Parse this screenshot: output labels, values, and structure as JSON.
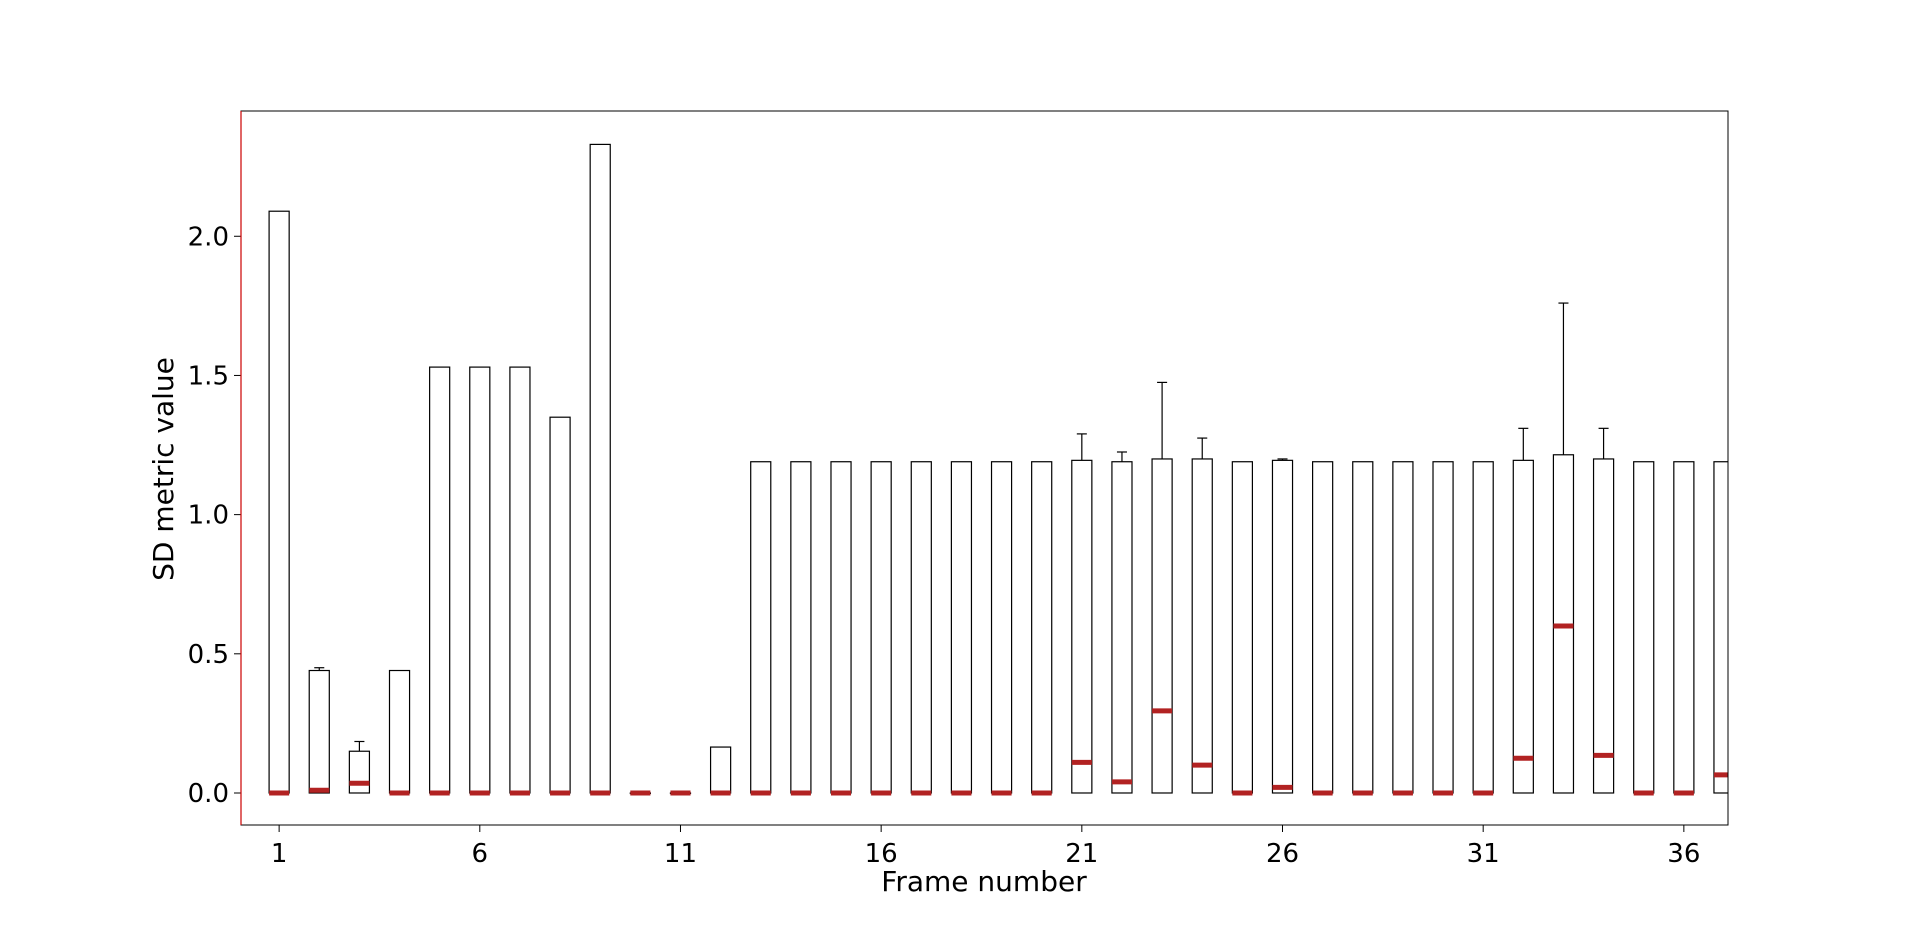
{
  "chart_data": {
    "type": "box",
    "title": "",
    "xlabel": "Frame number",
    "ylabel": "SD metric value",
    "xlim": [
      0.05,
      37.1
    ],
    "ylim": [
      -0.115,
      2.45
    ],
    "x_ticks": [
      1,
      6,
      11,
      16,
      21,
      26,
      31,
      36
    ],
    "y_ticks": [
      "0.0",
      "0.5",
      "1.0",
      "1.5",
      "2.0"
    ],
    "y_tick_values": [
      0.0,
      0.5,
      1.0,
      1.5,
      2.0
    ],
    "grid": false,
    "box_edge_color": "#000000",
    "median_color": "#b22222",
    "frame_color": "#cc0000",
    "boxes": [
      {
        "frame": 1,
        "q1": 0.0,
        "q3": 2.09,
        "median": 0.0,
        "whisker_high": 2.09
      },
      {
        "frame": 2,
        "q1": 0.0,
        "q3": 0.44,
        "median": 0.01,
        "whisker_high": 0.45
      },
      {
        "frame": 3,
        "q1": 0.0,
        "q3": 0.15,
        "median": 0.035,
        "whisker_high": 0.185
      },
      {
        "frame": 4,
        "q1": 0.0,
        "q3": 0.44,
        "median": 0.0,
        "whisker_high": 0.44
      },
      {
        "frame": 5,
        "q1": 0.0,
        "q3": 1.53,
        "median": 0.0,
        "whisker_high": 1.53
      },
      {
        "frame": 6,
        "q1": 0.0,
        "q3": 1.53,
        "median": 0.0,
        "whisker_high": 1.53
      },
      {
        "frame": 7,
        "q1": 0.0,
        "q3": 1.53,
        "median": 0.0,
        "whisker_high": 1.53
      },
      {
        "frame": 8,
        "q1": 0.0,
        "q3": 1.35,
        "median": 0.0,
        "whisker_high": 1.35
      },
      {
        "frame": 9,
        "q1": 0.0,
        "q3": 2.33,
        "median": 0.0,
        "whisker_high": 2.33
      },
      {
        "frame": 10,
        "q1": 0.0,
        "q3": 0.0,
        "median": 0.0,
        "whisker_high": 0.0
      },
      {
        "frame": 11,
        "q1": 0.0,
        "q3": 0.0,
        "median": 0.0,
        "whisker_high": 0.0
      },
      {
        "frame": 12,
        "q1": 0.0,
        "q3": 0.165,
        "median": 0.0,
        "whisker_high": 0.165
      },
      {
        "frame": 13,
        "q1": 0.0,
        "q3": 1.19,
        "median": 0.0,
        "whisker_high": 1.19
      },
      {
        "frame": 14,
        "q1": 0.0,
        "q3": 1.19,
        "median": 0.0,
        "whisker_high": 1.19
      },
      {
        "frame": 15,
        "q1": 0.0,
        "q3": 1.19,
        "median": 0.0,
        "whisker_high": 1.19
      },
      {
        "frame": 16,
        "q1": 0.0,
        "q3": 1.19,
        "median": 0.0,
        "whisker_high": 1.19
      },
      {
        "frame": 17,
        "q1": 0.0,
        "q3": 1.19,
        "median": 0.0,
        "whisker_high": 1.19
      },
      {
        "frame": 18,
        "q1": 0.0,
        "q3": 1.19,
        "median": 0.0,
        "whisker_high": 1.19
      },
      {
        "frame": 19,
        "q1": 0.0,
        "q3": 1.19,
        "median": 0.0,
        "whisker_high": 1.19
      },
      {
        "frame": 20,
        "q1": 0.0,
        "q3": 1.19,
        "median": 0.0,
        "whisker_high": 1.19
      },
      {
        "frame": 21,
        "q1": 0.0,
        "q3": 1.195,
        "median": 0.11,
        "whisker_high": 1.29
      },
      {
        "frame": 22,
        "q1": 0.0,
        "q3": 1.19,
        "median": 0.04,
        "whisker_high": 1.225
      },
      {
        "frame": 23,
        "q1": 0.0,
        "q3": 1.2,
        "median": 0.295,
        "whisker_high": 1.475
      },
      {
        "frame": 24,
        "q1": 0.0,
        "q3": 1.2,
        "median": 0.1,
        "whisker_high": 1.275
      },
      {
        "frame": 25,
        "q1": 0.0,
        "q3": 1.19,
        "median": 0.0,
        "whisker_high": 1.19
      },
      {
        "frame": 26,
        "q1": 0.0,
        "q3": 1.195,
        "median": 0.02,
        "whisker_high": 1.2
      },
      {
        "frame": 27,
        "q1": 0.0,
        "q3": 1.19,
        "median": 0.0,
        "whisker_high": 1.19
      },
      {
        "frame": 28,
        "q1": 0.0,
        "q3": 1.19,
        "median": 0.0,
        "whisker_high": 1.19
      },
      {
        "frame": 29,
        "q1": 0.0,
        "q3": 1.19,
        "median": 0.0,
        "whisker_high": 1.19
      },
      {
        "frame": 30,
        "q1": 0.0,
        "q3": 1.19,
        "median": 0.0,
        "whisker_high": 1.19
      },
      {
        "frame": 31,
        "q1": 0.0,
        "q3": 1.19,
        "median": 0.0,
        "whisker_high": 1.19
      },
      {
        "frame": 32,
        "q1": 0.0,
        "q3": 1.195,
        "median": 0.125,
        "whisker_high": 1.31
      },
      {
        "frame": 33,
        "q1": 0.0,
        "q3": 1.215,
        "median": 0.6,
        "whisker_high": 1.76
      },
      {
        "frame": 34,
        "q1": 0.0,
        "q3": 1.2,
        "median": 0.135,
        "whisker_high": 1.31
      },
      {
        "frame": 35,
        "q1": 0.0,
        "q3": 1.19,
        "median": 0.0,
        "whisker_high": 1.19
      },
      {
        "frame": 36,
        "q1": 0.0,
        "q3": 1.19,
        "median": 0.0,
        "whisker_high": 1.19
      },
      {
        "frame": 37,
        "q1": 0.0,
        "q3": 1.19,
        "median": 0.065,
        "whisker_high": 1.19
      }
    ]
  }
}
